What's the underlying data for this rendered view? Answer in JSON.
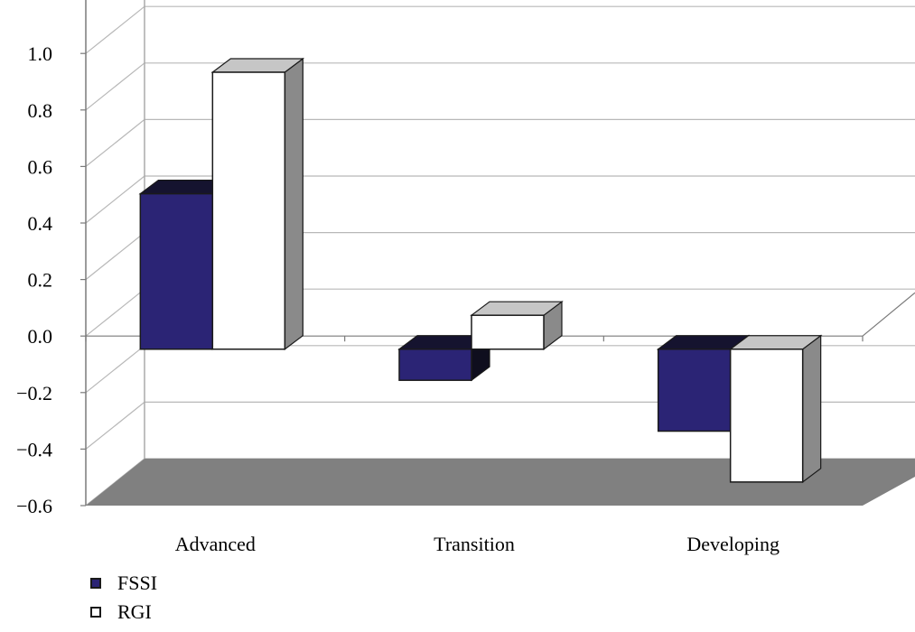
{
  "chart_data": {
    "type": "bar",
    "categories": [
      "Advanced",
      "Transition",
      "Developing"
    ],
    "series": [
      {
        "name": "FSSI",
        "values": [
          0.55,
          -0.11,
          -0.29
        ]
      },
      {
        "name": "RGI",
        "values": [
          0.98,
          0.12,
          -0.47
        ]
      }
    ],
    "yticks": [
      "1.0",
      "0.8",
      "0.6",
      "0.4",
      "0.2",
      "0.0",
      "−0.2",
      "−0.4",
      "−0.6"
    ],
    "ylim": [
      -0.6,
      1.0
    ],
    "grid": true,
    "legend_position": "bottom-left",
    "colors": {
      "FSSI": "#2b2475",
      "RGI": "#ffffff",
      "floor": "#808080"
    }
  }
}
